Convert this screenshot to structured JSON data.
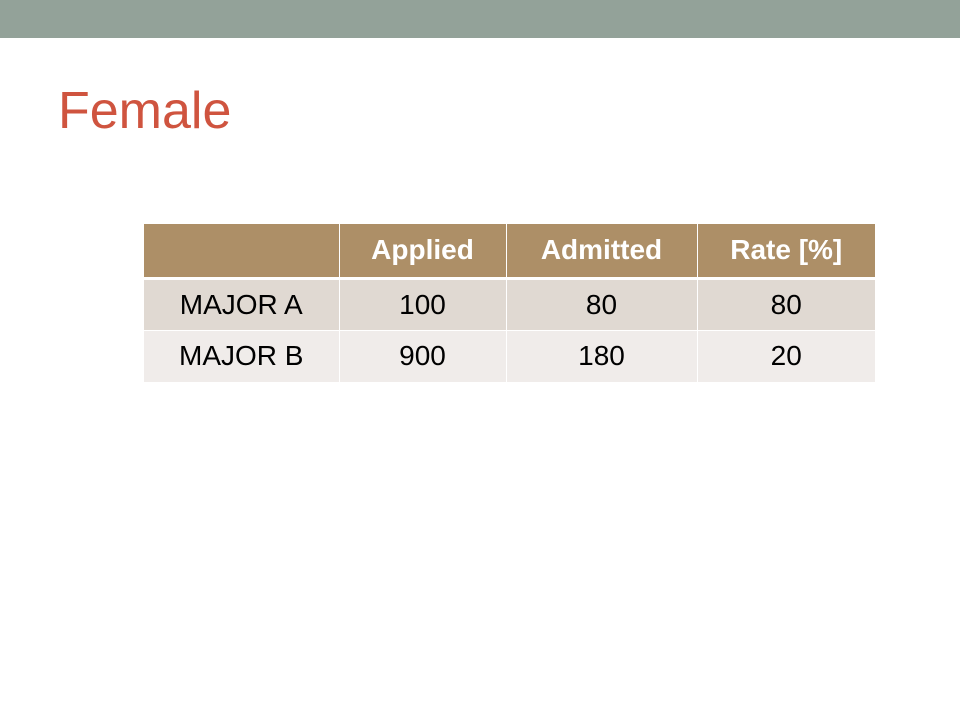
{
  "slide": {
    "title": "Female"
  },
  "table": {
    "headers": [
      "",
      "Applied",
      "Admitted",
      "Rate [%]"
    ],
    "rows": [
      {
        "label": "MAJOR A",
        "applied": "100",
        "admitted": "80",
        "rate": "80"
      },
      {
        "label": "MAJOR B",
        "applied": "900",
        "admitted": "180",
        "rate": "20"
      }
    ]
  },
  "colors": {
    "accent_bar": "#93a299",
    "title": "#cf543f",
    "header_fill": "#ad8f67",
    "row_odd_fill": "#e0d9d2",
    "row_even_fill": "#f0ecea"
  }
}
